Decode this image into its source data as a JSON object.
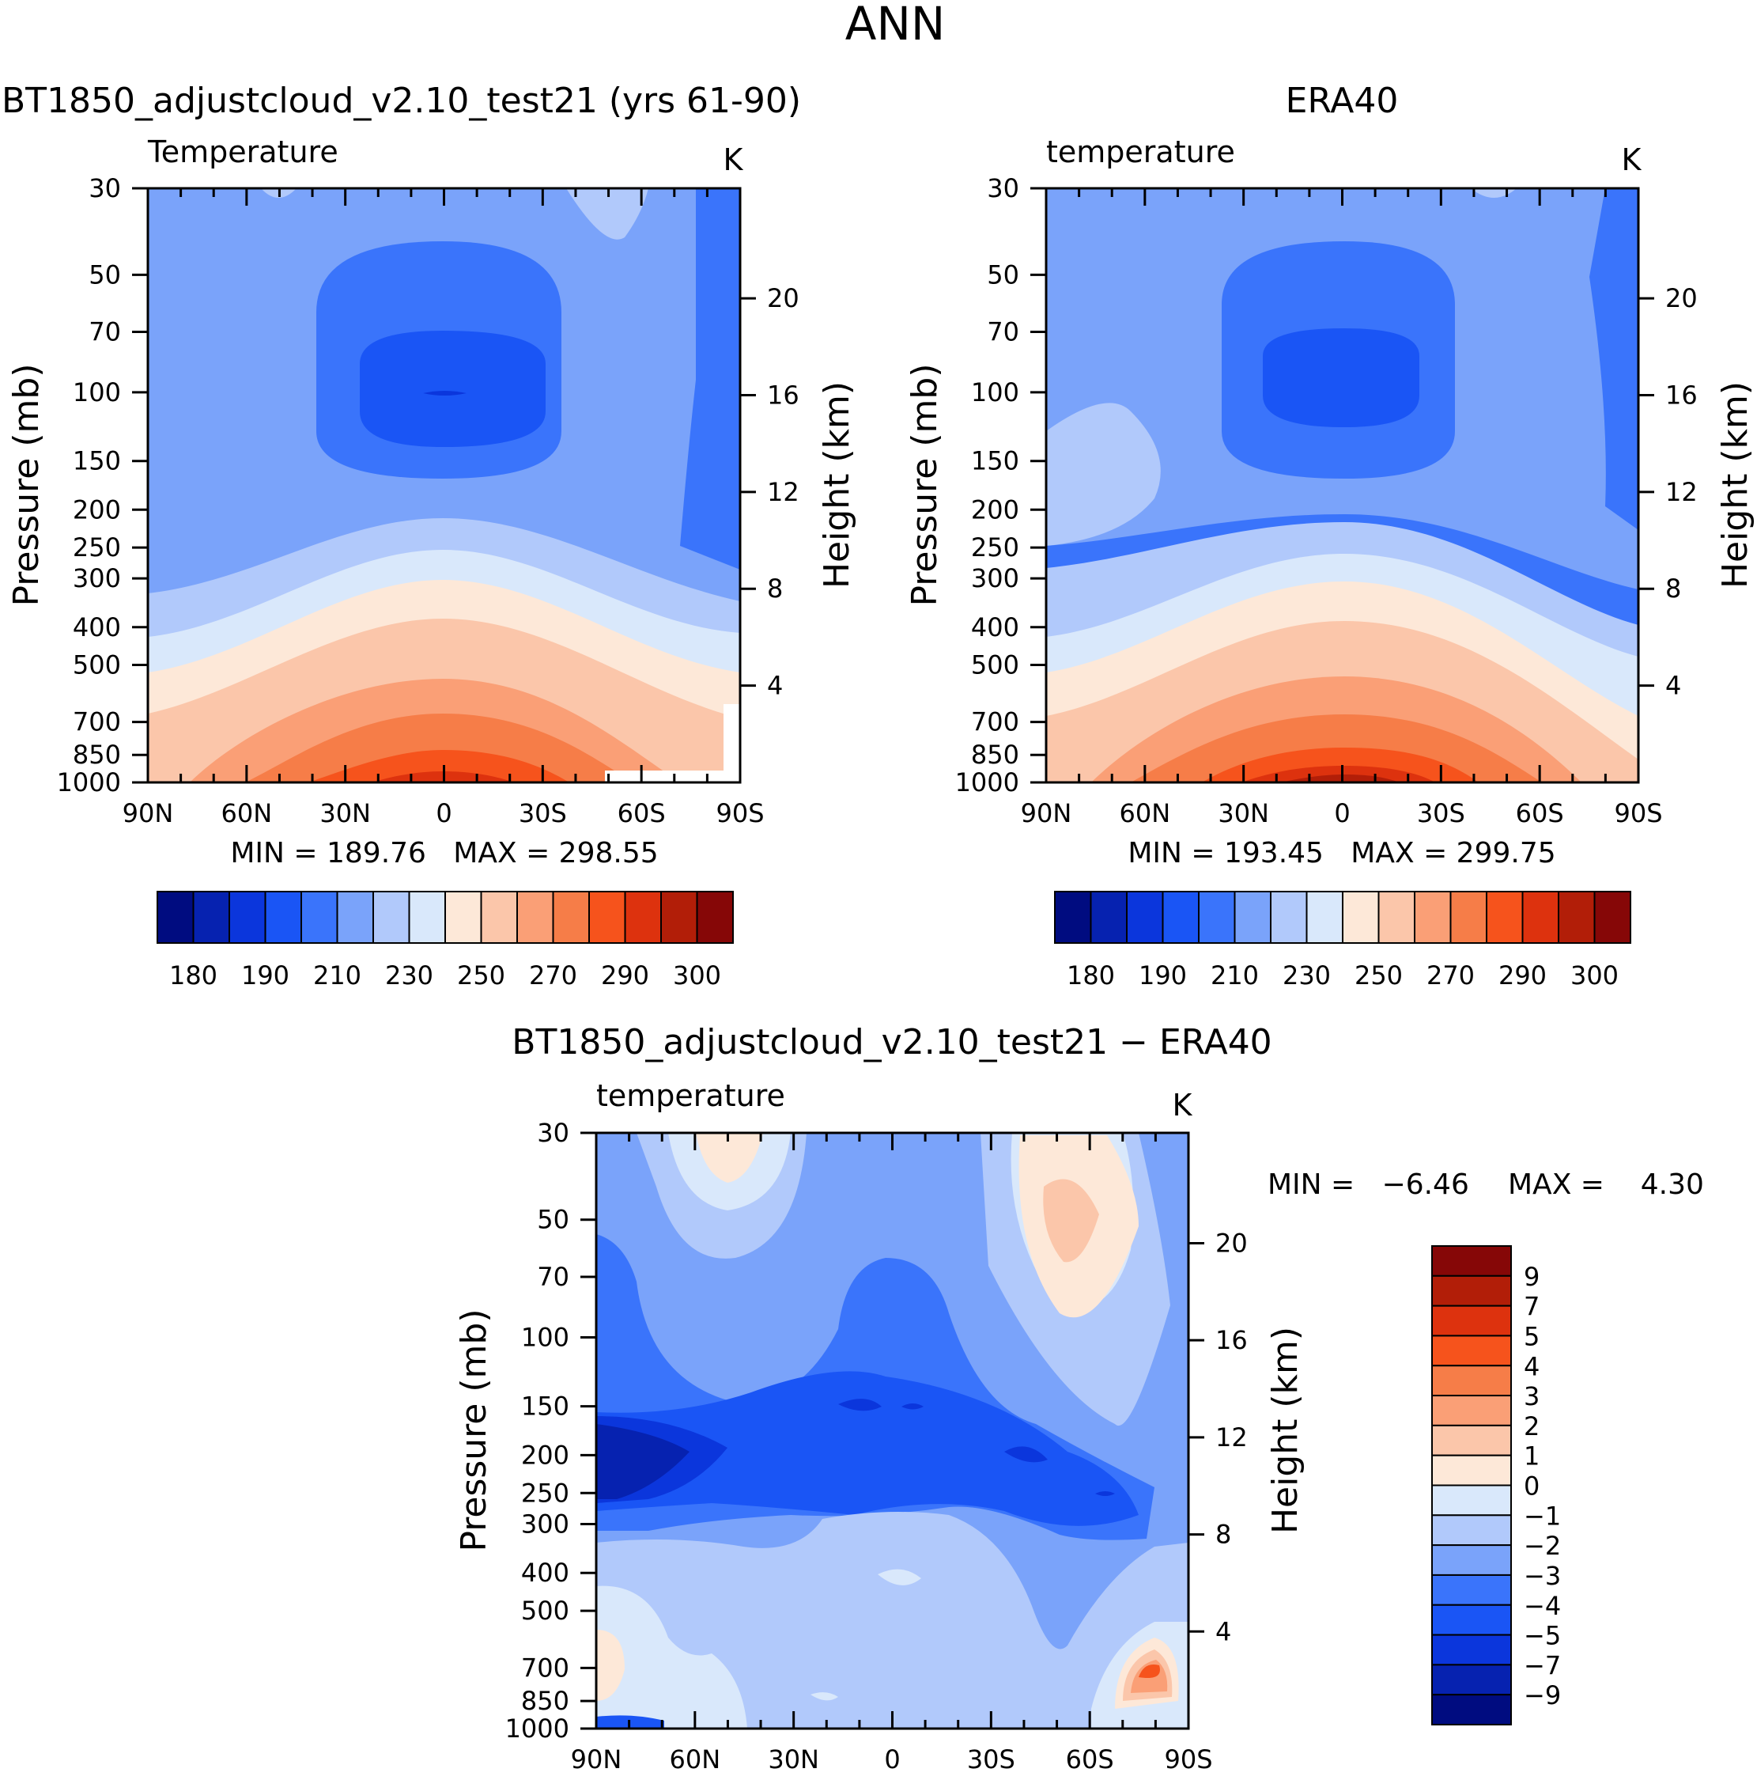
{
  "page_title": "ANN",
  "chart_data": [
    {
      "type": "heatmap",
      "title": "BT1850_adjustcloud_v2.10_test21 (yrs 61-90)",
      "subtitle": "Temperature",
      "units": "K",
      "ylabel": "Pressure (mb)",
      "y2label": "Height (km)",
      "x_ticks": [
        "90N",
        "60N",
        "30N",
        "0",
        "30S",
        "60S",
        "90S"
      ],
      "y_ticks": [
        "30",
        "50",
        "70",
        "100",
        "150",
        "200",
        "250",
        "300",
        "400",
        "500",
        "700",
        "850",
        "1000"
      ],
      "y2_ticks": [
        "20",
        "16",
        "12",
        "8",
        "4"
      ],
      "stats": "MIN = 189.76   MAX = 298.55",
      "levels": [
        180,
        185,
        190,
        200,
        210,
        220,
        230,
        240,
        250,
        260,
        270,
        280,
        290,
        295,
        300
      ],
      "colorbar_labels": [
        "180",
        "190",
        "210",
        "230",
        "250",
        "270",
        "290",
        "300"
      ]
    },
    {
      "type": "heatmap",
      "title": "ERA40",
      "subtitle": "temperature",
      "units": "K",
      "ylabel": "Pressure (mb)",
      "y2label": "Height (km)",
      "x_ticks": [
        "90N",
        "60N",
        "30N",
        "0",
        "30S",
        "60S",
        "90S"
      ],
      "y_ticks": [
        "30",
        "50",
        "70",
        "100",
        "150",
        "200",
        "250",
        "300",
        "400",
        "500",
        "700",
        "850",
        "1000"
      ],
      "y2_ticks": [
        "20",
        "16",
        "12",
        "8",
        "4"
      ],
      "stats": "MIN = 193.45   MAX = 299.75",
      "levels": [
        180,
        185,
        190,
        200,
        210,
        220,
        230,
        240,
        250,
        260,
        270,
        280,
        290,
        295,
        300
      ],
      "colorbar_labels": [
        "180",
        "190",
        "210",
        "230",
        "250",
        "270",
        "290",
        "300"
      ]
    },
    {
      "type": "heatmap",
      "title": "BT1850_adjustcloud_v2.10_test21 − ERA40",
      "subtitle": "temperature",
      "units": "K",
      "ylabel": "Pressure (mb)",
      "y2label": "Height (km)",
      "x_ticks": [
        "90N",
        "60N",
        "30N",
        "0",
        "30S",
        "60S",
        "90S"
      ],
      "y_ticks": [
        "30",
        "50",
        "70",
        "100",
        "150",
        "200",
        "250",
        "300",
        "400",
        "500",
        "700",
        "850",
        "1000"
      ],
      "y2_ticks": [
        "20",
        "16",
        "12",
        "8",
        "4"
      ],
      "stats_min": "MIN =   −6.46",
      "stats_max": "MAX =    4.30",
      "levels": [
        -9,
        -7,
        -5,
        -4,
        -3,
        -2,
        -1,
        0,
        1,
        2,
        3,
        4,
        5,
        7,
        9
      ],
      "colorbar_labels": [
        "9",
        "7",
        "5",
        "4",
        "3",
        "2",
        "1",
        "0",
        "−1",
        "−2",
        "−3",
        "−4",
        "−5",
        "−7",
        "−9"
      ]
    }
  ],
  "colors": {
    "palette16": [
      "#000c80",
      "#0622b0",
      "#0b36dc",
      "#1a55f5",
      "#3a74fb",
      "#7aa3fa",
      "#b1c9fb",
      "#d9e8fb",
      "#fde8d8",
      "#fbc6aa",
      "#fa9f76",
      "#f67d48",
      "#f6531c",
      "#dd320e",
      "#b21e08",
      "#860707"
    ],
    "colorbar_low_to_high": [
      "#000c80",
      "#0622b0",
      "#0b36dc",
      "#1a55f5",
      "#3a74fb",
      "#7aa3fa",
      "#b1c9fb",
      "#d9e8fb",
      "#fde8d8",
      "#fbc6aa",
      "#fa9f76",
      "#f67d48",
      "#f6531c",
      "#dd320e",
      "#b21e08",
      "#860707"
    ]
  }
}
